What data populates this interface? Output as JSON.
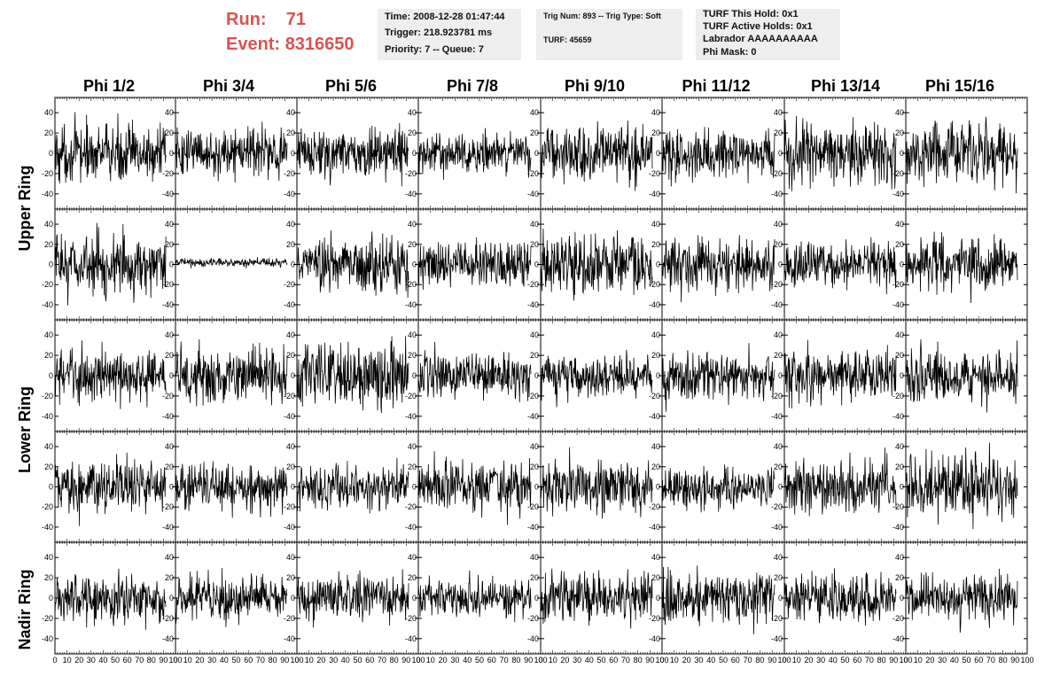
{
  "header": {
    "run_label": "Run:",
    "run_value": "71",
    "event_label": "Event:",
    "event_value": "8316650"
  },
  "info_time": {
    "time": "Time: 2008-12-28 01:47:44",
    "trigger": "Trigger: 218.923781 ms",
    "priority": "Priority: 7 -- Queue: 7"
  },
  "info_trig": {
    "trig": "Trig Num: 893 -- Trig Type: Soft",
    "turf": "TURF: 45659"
  },
  "info_turf": {
    "this_hold": "TURF This Hold: 0x1",
    "active_holds": "TURF Active Holds: 0x1",
    "labrador": "Labrador AAAAAAAAAA",
    "phi_mask": "Phi Mask: 0"
  },
  "columns": [
    "Phi 1/2",
    "Phi 3/4",
    "Phi 5/6",
    "Phi 7/8",
    "Phi 9/10",
    "Phi 11/12",
    "Phi 13/14",
    "Phi 15/16"
  ],
  "ring_labels": [
    "Upper Ring",
    "Lower Ring",
    "Nadir Ring"
  ],
  "colors": {
    "run_text": "#d9534f",
    "info_bg": "#eeeeee",
    "trace": "#000000"
  },
  "chart_data": {
    "type": "line",
    "rows": 5,
    "columns": 8,
    "xlim": [
      0,
      100
    ],
    "ylim": [
      -55,
      55
    ],
    "y_ticks": [
      -40,
      -20,
      0,
      20,
      40
    ],
    "x_tick_labels": [
      "0",
      "10",
      "20",
      "30",
      "40",
      "50",
      "60",
      "70",
      "80",
      "90",
      "100"
    ],
    "samples_per_trace": 260,
    "trace_amplitude": [
      [
        14,
        11,
        12,
        10,
        14,
        12,
        15,
        15
      ],
      [
        15,
        2,
        13,
        11,
        15,
        13,
        11,
        14
      ],
      [
        13,
        14,
        16,
        12,
        11,
        12,
        13,
        13
      ],
      [
        14,
        12,
        11,
        13,
        13,
        10,
        13,
        16
      ],
      [
        12,
        11,
        11,
        9,
        12,
        13,
        12,
        12
      ]
    ],
    "trace_offset": [
      [
        0,
        0,
        0,
        0,
        0,
        0,
        0,
        0
      ],
      [
        0,
        2,
        0,
        0,
        0,
        0,
        0,
        0
      ],
      [
        0,
        0,
        0,
        0,
        0,
        0,
        0,
        0
      ],
      [
        0,
        0,
        0,
        0,
        0,
        0,
        0,
        0
      ],
      [
        0,
        0,
        0,
        0,
        0,
        0,
        0,
        0
      ]
    ]
  }
}
